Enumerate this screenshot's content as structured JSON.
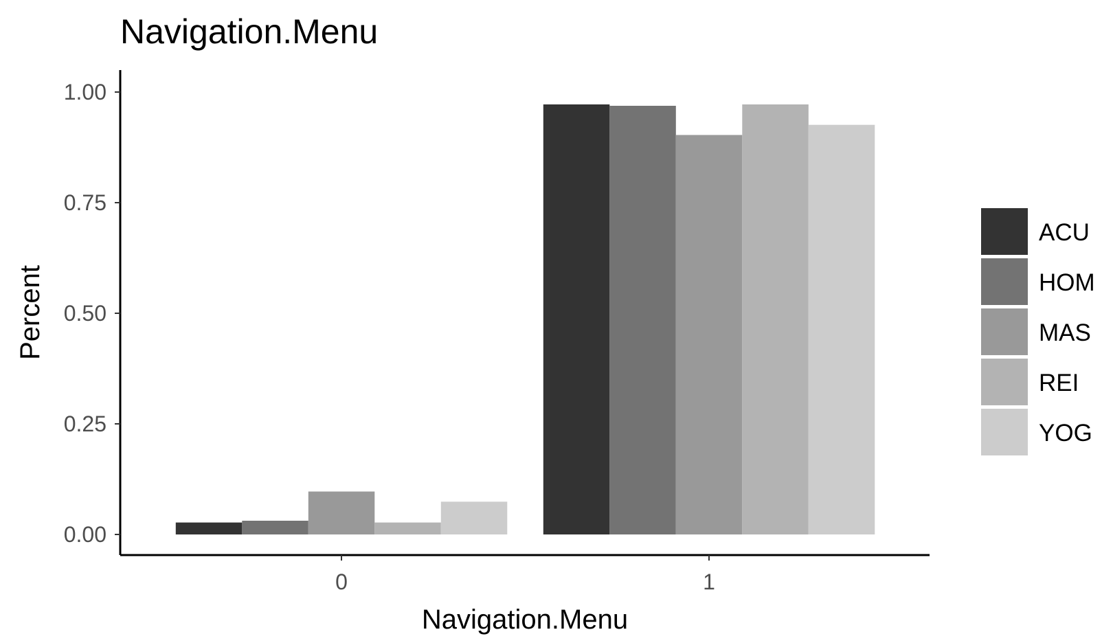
{
  "chart_data": {
    "type": "bar",
    "title": "Navigation.Menu",
    "xlabel": "Navigation.Menu",
    "ylabel": "Percent",
    "categories": [
      "0",
      "1"
    ],
    "series": [
      {
        "name": "ACU",
        "values": [
          0.027,
          0.972
        ],
        "color": "#333333"
      },
      {
        "name": "HOM",
        "values": [
          0.031,
          0.969
        ],
        "color": "#737373"
      },
      {
        "name": "MAS",
        "values": [
          0.097,
          0.903
        ],
        "color": "#999999"
      },
      {
        "name": "REI",
        "values": [
          0.027,
          0.972
        ],
        "color": "#b3b3b3"
      },
      {
        "name": "YOG",
        "values": [
          0.074,
          0.926
        ],
        "color": "#cccccc"
      }
    ],
    "ylim": [
      0,
      1.05
    ],
    "yticks": [
      "0.00",
      "0.25",
      "0.50",
      "0.75",
      "1.00"
    ],
    "grid": false,
    "legend_position": "right"
  }
}
